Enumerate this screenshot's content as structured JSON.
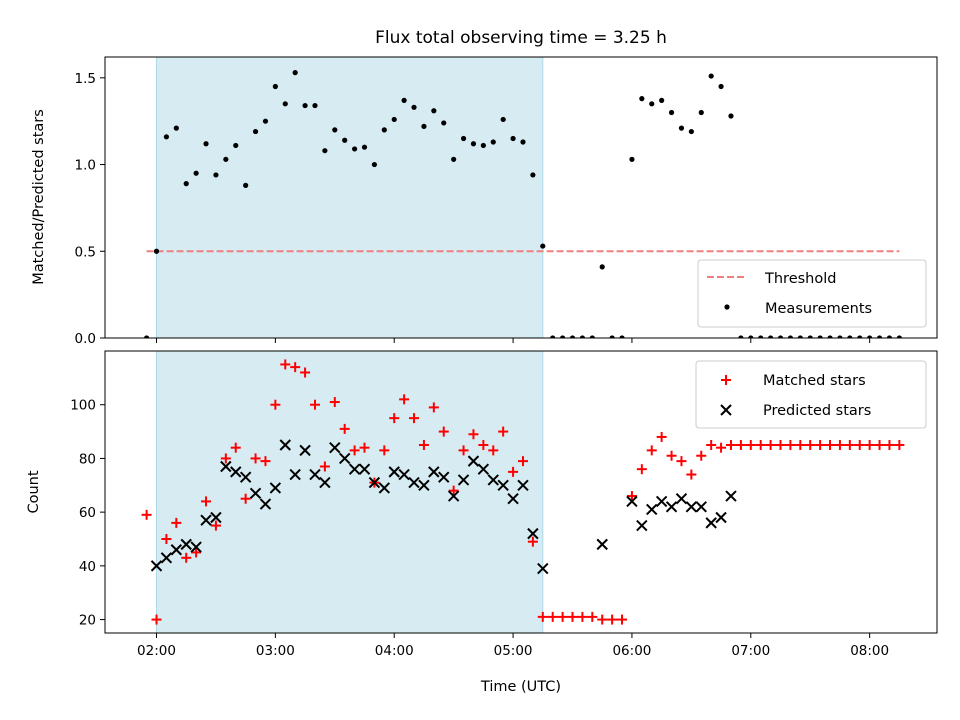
{
  "chart_data": {
    "type": "scatter",
    "title": "Flux total observing time = 3.25 h",
    "xlabel": "Time (UTC)",
    "x_unit": "hours UTC",
    "xlim": [
      "01:34",
      "08:34"
    ],
    "x_ticks": [
      "02:00",
      "03:00",
      "04:00",
      "05:00",
      "06:00",
      "07:00",
      "08:00"
    ],
    "shaded_interval": {
      "start": "02:00",
      "end": "05:15",
      "color": "#add8e6"
    },
    "panels": [
      {
        "name": "ratio",
        "ylabel": "Matched/Predicted stars",
        "ylim": [
          0,
          1.62
        ],
        "y_ticks": [
          "0.0",
          "0.5",
          "1.0",
          "1.5"
        ],
        "threshold": {
          "label": "Threshold",
          "value": 0.5,
          "x_start": "01:55",
          "x_end": "08:15",
          "color": "#f08080"
        },
        "legend_position": "lower right",
        "series": [
          {
            "name": "Measurements",
            "marker": "dot",
            "color": "#000000",
            "points": [
              [
                "01:55",
                0.0
              ],
              [
                "02:00",
                0.5
              ],
              [
                "02:05",
                1.16
              ],
              [
                "02:10",
                1.21
              ],
              [
                "02:15",
                0.89
              ],
              [
                "02:20",
                0.95
              ],
              [
                "02:25",
                1.12
              ],
              [
                "02:30",
                0.94
              ],
              [
                "02:35",
                1.03
              ],
              [
                "02:40",
                1.11
              ],
              [
                "02:45",
                0.88
              ],
              [
                "02:50",
                1.19
              ],
              [
                "02:55",
                1.25
              ],
              [
                "03:00",
                1.45
              ],
              [
                "03:05",
                1.35
              ],
              [
                "03:10",
                1.53
              ],
              [
                "03:15",
                1.34
              ],
              [
                "03:20",
                1.34
              ],
              [
                "03:25",
                1.08
              ],
              [
                "03:30",
                1.2
              ],
              [
                "03:35",
                1.14
              ],
              [
                "03:40",
                1.09
              ],
              [
                "03:45",
                1.1
              ],
              [
                "03:50",
                1.0
              ],
              [
                "03:55",
                1.2
              ],
              [
                "04:00",
                1.26
              ],
              [
                "04:05",
                1.37
              ],
              [
                "04:10",
                1.33
              ],
              [
                "04:15",
                1.22
              ],
              [
                "04:20",
                1.31
              ],
              [
                "04:25",
                1.24
              ],
              [
                "04:30",
                1.03
              ],
              [
                "04:35",
                1.15
              ],
              [
                "04:40",
                1.12
              ],
              [
                "04:45",
                1.11
              ],
              [
                "04:50",
                1.13
              ],
              [
                "04:55",
                1.26
              ],
              [
                "05:00",
                1.15
              ],
              [
                "05:05",
                1.13
              ],
              [
                "05:10",
                0.94
              ],
              [
                "05:15",
                0.53
              ],
              [
                "05:20",
                0.0
              ],
              [
                "05:25",
                0.0
              ],
              [
                "05:30",
                0.0
              ],
              [
                "05:35",
                0.0
              ],
              [
                "05:40",
                0.0
              ],
              [
                "05:45",
                0.41
              ],
              [
                "05:50",
                0.0
              ],
              [
                "05:55",
                0.0
              ],
              [
                "06:00",
                1.03
              ],
              [
                "06:05",
                1.38
              ],
              [
                "06:10",
                1.35
              ],
              [
                "06:15",
                1.37
              ],
              [
                "06:20",
                1.3
              ],
              [
                "06:25",
                1.21
              ],
              [
                "06:30",
                1.19
              ],
              [
                "06:35",
                1.3
              ],
              [
                "06:40",
                1.51
              ],
              [
                "06:45",
                1.45
              ],
              [
                "06:50",
                1.28
              ],
              [
                "06:55",
                0.0
              ],
              [
                "07:00",
                0.0
              ],
              [
                "07:05",
                0.0
              ],
              [
                "07:10",
                0.0
              ],
              [
                "07:15",
                0.0
              ],
              [
                "07:20",
                0.0
              ],
              [
                "07:25",
                0.0
              ],
              [
                "07:30",
                0.0
              ],
              [
                "07:35",
                0.0
              ],
              [
                "07:40",
                0.0
              ],
              [
                "07:45",
                0.0
              ],
              [
                "07:50",
                0.0
              ],
              [
                "07:55",
                0.0
              ],
              [
                "08:00",
                0.0
              ],
              [
                "08:05",
                0.0
              ],
              [
                "08:10",
                0.0
              ],
              [
                "08:15",
                0.0
              ]
            ]
          }
        ],
        "threshold_legend_label": "Threshold"
      },
      {
        "name": "counts",
        "ylabel": "Count",
        "ylim": [
          15,
          120
        ],
        "y_ticks": [
          "20",
          "40",
          "60",
          "80",
          "100"
        ],
        "legend_position": "upper right",
        "series": [
          {
            "name": "Matched stars",
            "marker": "plus",
            "color": "#ff0000",
            "points": [
              [
                "01:55",
                59
              ],
              [
                "02:00",
                20
              ],
              [
                "02:05",
                50
              ],
              [
                "02:10",
                56
              ],
              [
                "02:15",
                43
              ],
              [
                "02:20",
                45
              ],
              [
                "02:25",
                64
              ],
              [
                "02:30",
                55
              ],
              [
                "02:35",
                80
              ],
              [
                "02:40",
                84
              ],
              [
                "02:45",
                65
              ],
              [
                "02:50",
                80
              ],
              [
                "02:55",
                79
              ],
              [
                "03:00",
                100
              ],
              [
                "03:05",
                115
              ],
              [
                "03:10",
                114
              ],
              [
                "03:15",
                112
              ],
              [
                "03:20",
                100
              ],
              [
                "03:25",
                77
              ],
              [
                "03:30",
                101
              ],
              [
                "03:35",
                91
              ],
              [
                "03:40",
                83
              ],
              [
                "03:45",
                84
              ],
              [
                "03:50",
                71
              ],
              [
                "03:55",
                83
              ],
              [
                "04:00",
                95
              ],
              [
                "04:05",
                102
              ],
              [
                "04:10",
                95
              ],
              [
                "04:15",
                85
              ],
              [
                "04:20",
                99
              ],
              [
                "04:25",
                90
              ],
              [
                "04:30",
                68
              ],
              [
                "04:35",
                83
              ],
              [
                "04:40",
                89
              ],
              [
                "04:45",
                85
              ],
              [
                "04:50",
                83
              ],
              [
                "04:55",
                90
              ],
              [
                "05:00",
                75
              ],
              [
                "05:05",
                79
              ],
              [
                "05:10",
                49
              ],
              [
                "05:15",
                21
              ],
              [
                "05:20",
                21
              ],
              [
                "05:25",
                21
              ],
              [
                "05:30",
                21
              ],
              [
                "05:35",
                21
              ],
              [
                "05:40",
                21
              ],
              [
                "05:45",
                20
              ],
              [
                "05:50",
                20
              ],
              [
                "05:55",
                20
              ],
              [
                "06:00",
                66
              ],
              [
                "06:05",
                76
              ],
              [
                "06:10",
                83
              ],
              [
                "06:15",
                88
              ],
              [
                "06:20",
                81
              ],
              [
                "06:25",
                79
              ],
              [
                "06:30",
                74
              ],
              [
                "06:35",
                81
              ],
              [
                "06:40",
                85
              ],
              [
                "06:45",
                84
              ],
              [
                "06:50",
                85
              ],
              [
                "06:55",
                85
              ],
              [
                "07:00",
                85
              ],
              [
                "07:05",
                85
              ],
              [
                "07:10",
                85
              ],
              [
                "07:15",
                85
              ],
              [
                "07:20",
                85
              ],
              [
                "07:25",
                85
              ],
              [
                "07:30",
                85
              ],
              [
                "07:35",
                85
              ],
              [
                "07:40",
                85
              ],
              [
                "07:45",
                85
              ],
              [
                "07:50",
                85
              ],
              [
                "07:55",
                85
              ],
              [
                "08:00",
                85
              ],
              [
                "08:05",
                85
              ],
              [
                "08:10",
                85
              ],
              [
                "08:15",
                85
              ]
            ]
          },
          {
            "name": "Predicted stars",
            "marker": "x",
            "color": "#000000",
            "points": [
              [
                "02:00",
                40
              ],
              [
                "02:05",
                43
              ],
              [
                "02:10",
                46
              ],
              [
                "02:15",
                48
              ],
              [
                "02:20",
                47
              ],
              [
                "02:25",
                57
              ],
              [
                "02:30",
                58
              ],
              [
                "02:35",
                77
              ],
              [
                "02:40",
                75
              ],
              [
                "02:45",
                73
              ],
              [
                "02:50",
                67
              ],
              [
                "02:55",
                63
              ],
              [
                "03:00",
                69
              ],
              [
                "03:05",
                85
              ],
              [
                "03:10",
                74
              ],
              [
                "03:15",
                83
              ],
              [
                "03:20",
                74
              ],
              [
                "03:25",
                71
              ],
              [
                "03:30",
                84
              ],
              [
                "03:35",
                80
              ],
              [
                "03:40",
                76
              ],
              [
                "03:45",
                76
              ],
              [
                "03:50",
                71
              ],
              [
                "03:55",
                69
              ],
              [
                "04:00",
                75
              ],
              [
                "04:05",
                74
              ],
              [
                "04:10",
                71
              ],
              [
                "04:15",
                70
              ],
              [
                "04:20",
                75
              ],
              [
                "04:25",
                73
              ],
              [
                "04:30",
                66
              ],
              [
                "04:35",
                72
              ],
              [
                "04:40",
                79
              ],
              [
                "04:45",
                76
              ],
              [
                "04:50",
                72
              ],
              [
                "04:55",
                70
              ],
              [
                "05:00",
                65
              ],
              [
                "05:05",
                70
              ],
              [
                "05:10",
                52
              ],
              [
                "05:15",
                39
              ],
              [
                "05:45",
                48
              ],
              [
                "06:00",
                64
              ],
              [
                "06:05",
                55
              ],
              [
                "06:10",
                61
              ],
              [
                "06:15",
                64
              ],
              [
                "06:20",
                62
              ],
              [
                "06:25",
                65
              ],
              [
                "06:30",
                62
              ],
              [
                "06:35",
                62
              ],
              [
                "06:40",
                56
              ],
              [
                "06:45",
                58
              ],
              [
                "06:50",
                66
              ]
            ]
          }
        ]
      }
    ]
  }
}
